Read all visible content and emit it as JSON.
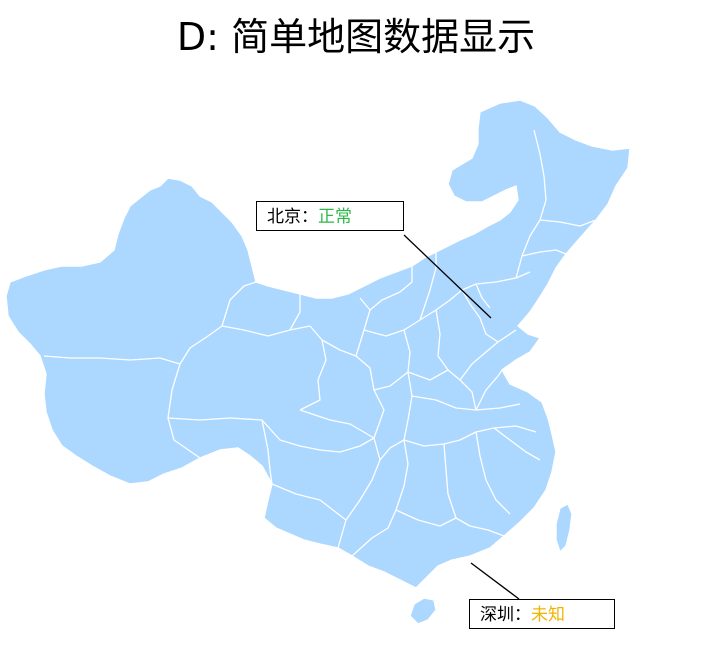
{
  "title": "D: 简单地图数据显示",
  "callouts": [
    {
      "name": "北京：",
      "status": "正常",
      "status_color": "#2eb84a"
    },
    {
      "name": "深圳：",
      "status": "未知",
      "status_color": "#f0b400"
    }
  ],
  "colors": {
    "region_fill": "#acd7ff",
    "region_border": "#ffffff"
  }
}
